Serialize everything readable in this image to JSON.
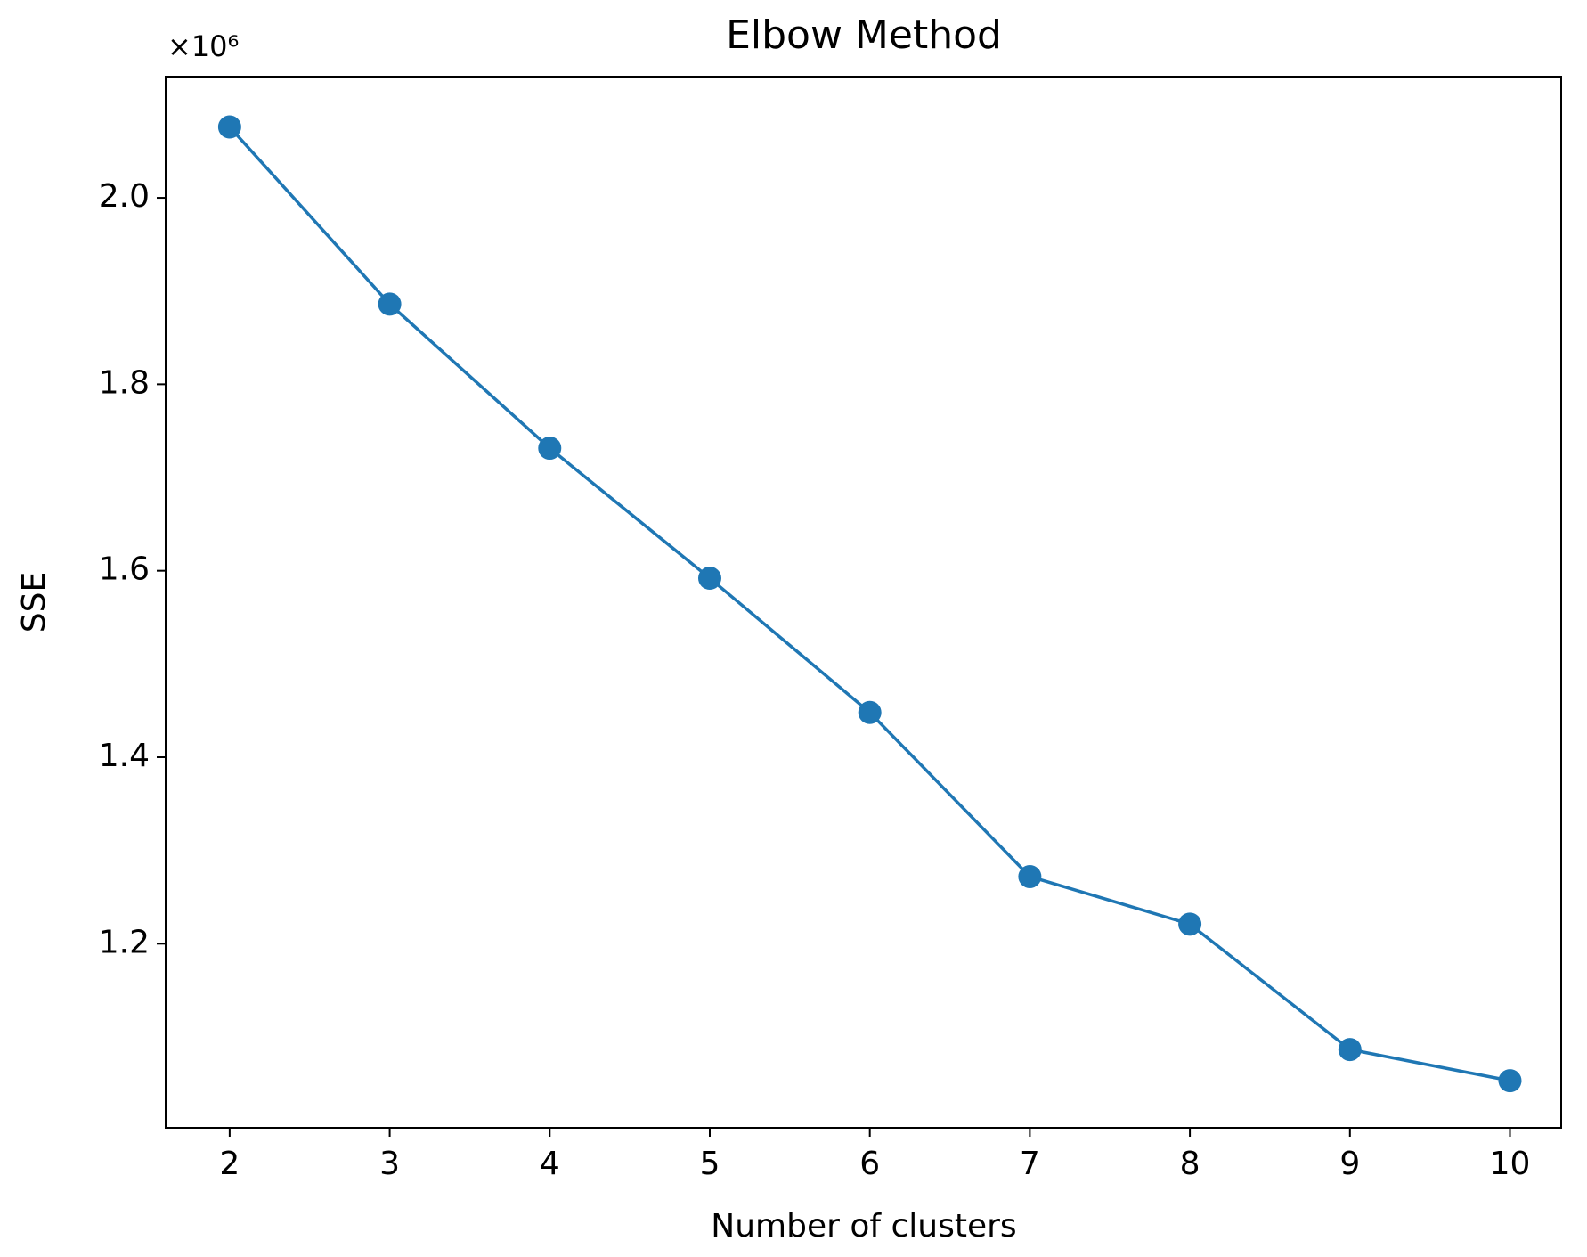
{
  "chart_data": {
    "type": "line",
    "title": "Elbow Method",
    "x_label": "Number of clusters",
    "y_label": "SSE",
    "y_offset_label": "×10⁶",
    "x": [
      2,
      3,
      4,
      5,
      6,
      7,
      8,
      9,
      10
    ],
    "series": [
      {
        "color": "#1f77b4",
        "values": [
          2.076,
          1.886,
          1.7315,
          1.592,
          1.448,
          1.272,
          1.221,
          1.0865,
          1.053
        ]
      }
    ],
    "xlim": [
      1.6,
      10.32
    ],
    "xticks": [
      2,
      3,
      4,
      5,
      6,
      7,
      8,
      9,
      10
    ],
    "ylim": [
      1.0025,
      2.13
    ],
    "yticks": [
      1.2,
      1.4,
      1.6,
      1.8,
      {
        "value": 2,
        "label": "2.0"
      }
    ],
    "grid": false,
    "markers": true
  }
}
